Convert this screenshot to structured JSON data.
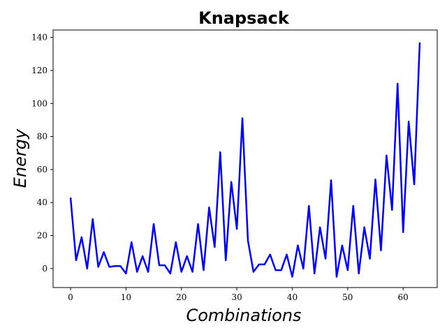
{
  "chart_data": {
    "type": "line",
    "title": "Knapsack",
    "xlabel": "Combinations",
    "ylabel": "Energy",
    "xlim": [
      -3.15,
      66.15
    ],
    "ylim": [
      -11.5,
      144.5
    ],
    "xticks": [
      0,
      10,
      20,
      30,
      40,
      50,
      60
    ],
    "yticks": [
      0,
      20,
      40,
      60,
      80,
      100,
      120,
      140
    ],
    "grid": false,
    "series": [
      {
        "color": "#0000ff",
        "x": [
          0,
          1,
          2,
          3,
          4,
          5,
          6,
          7,
          8,
          9,
          10,
          11,
          12,
          13,
          14,
          15,
          16,
          17,
          18,
          19,
          20,
          21,
          22,
          23,
          24,
          25,
          26,
          27,
          28,
          29,
          30,
          31,
          32,
          33,
          34,
          35,
          36,
          37,
          38,
          39,
          40,
          41,
          42,
          43,
          44,
          45,
          46,
          47,
          48,
          49,
          50,
          51,
          52,
          53,
          54,
          55,
          56,
          57,
          58,
          59,
          60,
          61,
          62,
          63
        ],
        "values": [
          43,
          5,
          19,
          0,
          30,
          1,
          10,
          1,
          1.5,
          1.5,
          -3,
          16,
          -2,
          7.5,
          -2,
          27,
          2,
          2,
          -3,
          16,
          -2,
          7.5,
          -2,
          27,
          -1,
          37,
          13,
          70.5,
          5,
          52.5,
          24,
          91,
          17,
          -2,
          2.5,
          2.5,
          8.5,
          -1,
          -1,
          8.5,
          -5,
          14,
          0,
          38,
          -3,
          25,
          6,
          53.5,
          -5,
          14,
          -1,
          38,
          -3,
          25,
          6,
          54,
          11,
          68.5,
          35.5,
          112,
          22,
          89,
          51,
          137
        ]
      }
    ]
  }
}
